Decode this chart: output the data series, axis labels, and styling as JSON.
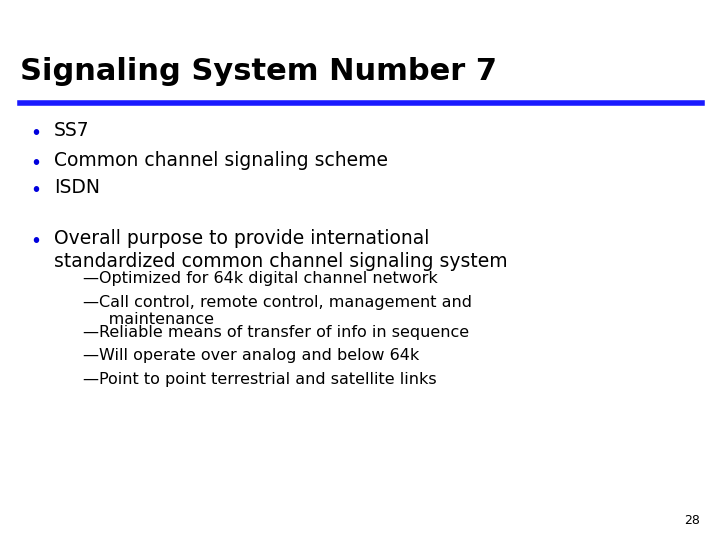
{
  "title": "Signaling System Number 7",
  "title_color": "#000000",
  "title_fontsize": 22,
  "line_color": "#1a1aff",
  "bullet_color": "#0000dd",
  "bullet_items": [
    "SS7",
    "Common channel signaling scheme",
    "ISDN",
    "Overall purpose to provide international\nstandardized common channel signaling system"
  ],
  "sub_items": [
    "—Optimized for 64k digital channel network",
    "—Call control, remote control, management and\n     maintenance",
    "—Reliable means of transfer of info in sequence",
    "—Will operate over analog and below 64k",
    "—Point to point terrestrial and satellite links"
  ],
  "bullet_fontsize": 13.5,
  "sub_fontsize": 11.5,
  "page_number": "28",
  "bg_color": "#ffffff",
  "text_color": "#000000"
}
